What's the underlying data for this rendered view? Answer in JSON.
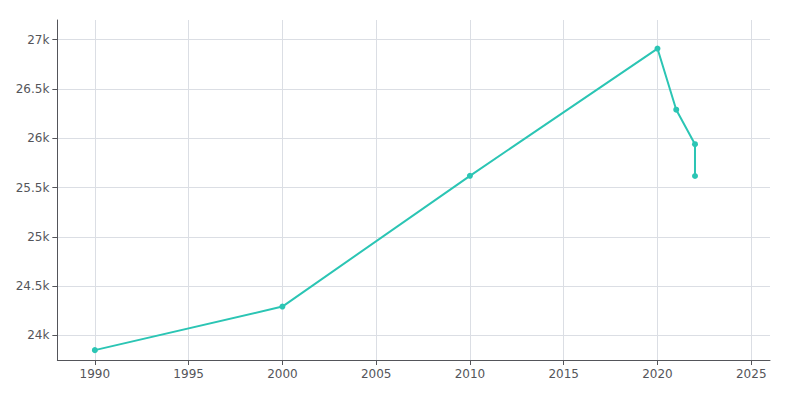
{
  "chart_data": {
    "type": "line",
    "x": [
      1990,
      2000,
      2010,
      2020,
      2021,
      2022,
      2022
    ],
    "values": [
      23850,
      24292,
      25619,
      26910,
      26290,
      25940,
      25617
    ],
    "color": "#2bc5b4",
    "marker": "circle",
    "xlim": [
      1988,
      2026
    ],
    "xticks": [
      1990,
      1995,
      2000,
      2005,
      2010,
      2015,
      2020,
      2025
    ],
    "ylim": [
      23750,
      27200
    ],
    "yticks": [
      {
        "value": 24000,
        "label": "24k"
      },
      {
        "value": 24500,
        "label": "24.5k"
      },
      {
        "value": 25000,
        "label": "25k"
      },
      {
        "value": 25500,
        "label": "25.5k"
      },
      {
        "value": 26000,
        "label": "26k"
      },
      {
        "value": 26500,
        "label": "26.5k"
      },
      {
        "value": 27000,
        "label": "27k"
      }
    ],
    "grid": true
  }
}
